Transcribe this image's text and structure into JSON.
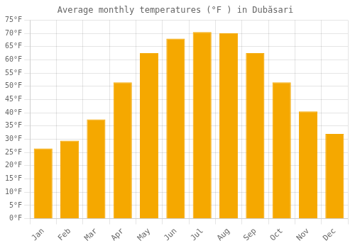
{
  "chart_data": {
    "type": "bar",
    "title": "Average monthly temperatures (°F ) in Dubăsari",
    "categories": [
      "Jan",
      "Feb",
      "Mar",
      "Apr",
      "May",
      "Jun",
      "Jul",
      "Aug",
      "Sep",
      "Oct",
      "Nov",
      "Dec"
    ],
    "values": [
      26.5,
      29.5,
      37.5,
      51.5,
      62.5,
      68,
      70.5,
      70,
      62.5,
      51.5,
      40.5,
      32
    ],
    "color": "#F5A800",
    "ylim": [
      0,
      75
    ],
    "yticks": [
      {
        "value": 0,
        "label": "0°F"
      },
      {
        "value": 5,
        "label": "5°F"
      },
      {
        "value": 10,
        "label": "10°F"
      },
      {
        "value": 15,
        "label": "15°F"
      },
      {
        "value": 20,
        "label": "20°F"
      },
      {
        "value": 25,
        "label": "25°F"
      },
      {
        "value": 30,
        "label": "30°F"
      },
      {
        "value": 35,
        "label": "35°F"
      },
      {
        "value": 40,
        "label": "40°F"
      },
      {
        "value": 45,
        "label": "45°F"
      },
      {
        "value": 50,
        "label": "50°F"
      },
      {
        "value": 55,
        "label": "55°F"
      },
      {
        "value": 60,
        "label": "60°F"
      },
      {
        "value": 65,
        "label": "65°F"
      },
      {
        "value": 70,
        "label": "70°F"
      },
      {
        "value": 75,
        "label": "75°F"
      }
    ],
    "grid": true
  }
}
